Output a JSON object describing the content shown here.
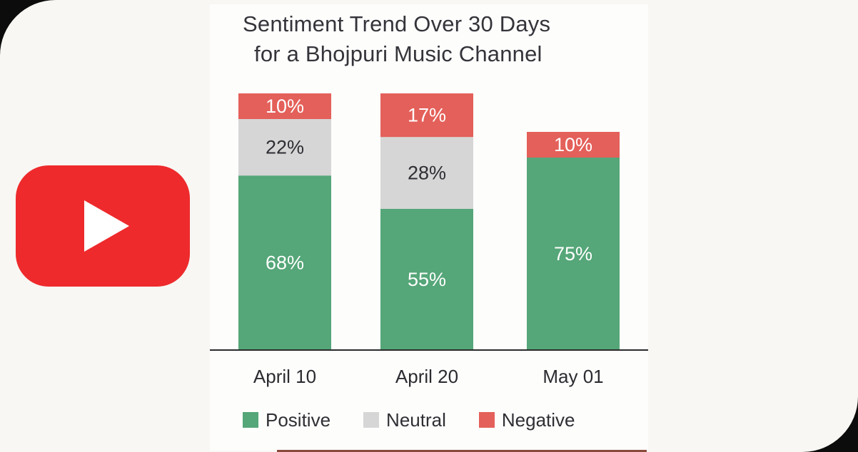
{
  "chart_data": {
    "type": "bar",
    "stacked": true,
    "title_lines": [
      "Sentiment Trend Over 30 Days",
      "for a Bhojpuri Music Channel"
    ],
    "categories": [
      "April 10",
      "April 20",
      "May 01"
    ],
    "series": [
      {
        "name": "Positive",
        "color": "#55a678",
        "values": [
          68,
          55,
          75
        ],
        "labels": [
          "68%",
          "55%",
          "75%"
        ]
      },
      {
        "name": "Neutral",
        "color": "#d6d6d6",
        "values": [
          22,
          28,
          0
        ],
        "labels": [
          "22%",
          "28%",
          ""
        ]
      },
      {
        "name": "Negative",
        "color": "#e4605a",
        "values": [
          10,
          17,
          10
        ],
        "labels": [
          "10%",
          "17%",
          "10%"
        ]
      }
    ],
    "ylim": [
      0,
      100
    ],
    "grid": false,
    "legend_position": "bottom"
  },
  "logo": {
    "icon": "youtube-play-icon",
    "color": "#ee2a2c"
  }
}
